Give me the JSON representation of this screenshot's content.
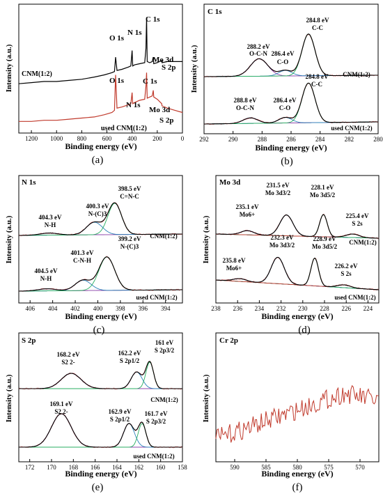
{
  "chart_data": [
    {
      "type": "line",
      "panel_label": "(a)",
      "xlabel": "Binding energy (eV)",
      "ylabel": "Intensity (a.u.)",
      "xlim": [
        1300,
        0
      ],
      "xticks": [
        "1200",
        "1000",
        "800",
        "600",
        "400",
        "200",
        "0"
      ],
      "series": [
        {
          "name": "CNM(1:2)",
          "color": "#000000",
          "x": [
            1300,
            1200,
            1100,
            1000,
            900,
            800,
            700,
            620,
            560,
            540,
            531,
            520,
            480,
            430,
            410,
            400,
            395,
            380,
            340,
            300,
            290,
            285,
            280,
            260,
            240,
            232,
            228,
            200,
            165,
            162,
            120,
            60,
            0
          ],
          "y": [
            42,
            43,
            44,
            44,
            45,
            46,
            48,
            50,
            52,
            53,
            66,
            54,
            55,
            57,
            58,
            72,
            58,
            59,
            60,
            61,
            74,
            102,
            62,
            61,
            62,
            66,
            60,
            61,
            63,
            61,
            62,
            62,
            62
          ]
        },
        {
          "name": "used CNM(1:2)",
          "color": "#c0392b",
          "x": [
            1300,
            1200,
            1100,
            1000,
            900,
            800,
            700,
            620,
            560,
            540,
            531,
            520,
            480,
            430,
            410,
            400,
            395,
            380,
            340,
            300,
            290,
            285,
            280,
            260,
            240,
            232,
            228,
            200,
            165,
            162,
            120,
            60,
            0
          ],
          "y": [
            8,
            8,
            9,
            9,
            10,
            11,
            12,
            14,
            16,
            18,
            50,
            20,
            21,
            23,
            24,
            34,
            24,
            25,
            27,
            28,
            40,
            52,
            29,
            30,
            31,
            36,
            30,
            28,
            24,
            22,
            20,
            18,
            16
          ]
        }
      ],
      "annotations": [
        "O 1s",
        "N 1s",
        "C 1s",
        "Mo 3d",
        "S 2p",
        "O 1s",
        "N 1s",
        "C 1s",
        "Mo 3d",
        "S 2p",
        "CNM(1:2)",
        "used CNM(1:2)"
      ]
    },
    {
      "type": "line",
      "panel_label": "(b)",
      "title": "C 1s",
      "xlabel": "Binding energy (eV)",
      "ylabel": "Intensity (a.u.)",
      "xlim": [
        292,
        280
      ],
      "xticks": [
        "292",
        "290",
        "288",
        "286",
        "284",
        "282",
        "280"
      ],
      "peaks": {
        "top": [
          {
            "center": 288.2,
            "label": "288.2 eV",
            "sub": "O-C-N"
          },
          {
            "center": 286.4,
            "label": "286.4 eV",
            "sub": "C-O"
          },
          {
            "center": 284.8,
            "label": "284.8 eV",
            "sub": "C-C"
          }
        ],
        "bottom": [
          {
            "center": 288.8,
            "label": "288.8 eV",
            "sub": "O-C-N"
          },
          {
            "center": 286.4,
            "label": "286.4 eV",
            "sub": "C-O"
          },
          {
            "center": 284.8,
            "label": "284.8 eV",
            "sub": "C-C"
          }
        ]
      },
      "annotations": [
        "CNM(1:2)",
        "used CNM(1:2)"
      ]
    },
    {
      "type": "line",
      "panel_label": "(c)",
      "title": "N 1s",
      "xlabel": "Binding energy (eV)",
      "ylabel": "Intensity (a.u.)",
      "xlim": [
        407,
        392.5
      ],
      "xticks": [
        "406",
        "404",
        "402",
        "400",
        "398",
        "396",
        "394"
      ],
      "peaks": {
        "top": [
          {
            "center": 404.3,
            "label": "404.3 eV",
            "sub": "N-H"
          },
          {
            "center": 400.3,
            "label": "400.3 eV",
            "sub": "N-(C)3"
          },
          {
            "center": 398.5,
            "label": "398.5 eV",
            "sub": "C=N-C"
          }
        ],
        "bottom": [
          {
            "center": 404.5,
            "label": "404.5 eV",
            "sub": "N-H"
          },
          {
            "center": 401.3,
            "label": "401.3 eV",
            "sub": "C-N-H"
          },
          {
            "center": 399.2,
            "label": "399.2 eV",
            "sub": "N-(C)3"
          }
        ]
      },
      "annotations": [
        "CNM(1:2)",
        "used CNM(1:2)"
      ]
    },
    {
      "type": "line",
      "panel_label": "(d)",
      "title": "Mo 3d",
      "xlabel": "Binding energy (eV)",
      "ylabel": "Intensity (a.u.)",
      "xlim": [
        238,
        223
      ],
      "xticks": [
        "238",
        "236",
        "234",
        "232",
        "230",
        "228",
        "226",
        "224"
      ],
      "peaks": {
        "top": [
          {
            "center": 235.1,
            "label": "235.1 eV",
            "sub": "Mo6+"
          },
          {
            "center": 231.5,
            "label": "231.5 eV",
            "sub": "Mo 3d3/2"
          },
          {
            "center": 228.1,
            "label": "228.1 eV",
            "sub": "Mo 3d5/2"
          },
          {
            "center": 225.4,
            "label": "225.4 eV",
            "sub": "S 2s"
          }
        ],
        "bottom": [
          {
            "center": 235.8,
            "label": "235.8 eV",
            "sub": "Mo6+"
          },
          {
            "center": 232.3,
            "label": "232.3 eV",
            "sub": "Mo 3d3/2"
          },
          {
            "center": 228.9,
            "label": "228.9 eV",
            "sub": "Mo 3d5/2"
          },
          {
            "center": 226.2,
            "label": "226.2 eV",
            "sub": "S 2s"
          }
        ]
      },
      "annotations": [
        "CNM(1:2)",
        "used CNM(1:2)"
      ]
    },
    {
      "type": "line",
      "panel_label": "(e)",
      "title": "S 2p",
      "xlabel": "Binding energy (eV)",
      "ylabel": "Intensity (a.u.)",
      "xlim": [
        173,
        158
      ],
      "xticks": [
        "172",
        "170",
        "168",
        "166",
        "164",
        "162",
        "160",
        "158"
      ],
      "peaks": {
        "top": [
          {
            "center": 168.2,
            "label": "168.2 eV",
            "sub": "S2 2-"
          },
          {
            "center": 162.2,
            "label": "162.2 eV",
            "sub": "S 2p1/2"
          },
          {
            "center": 161.0,
            "label": "161 eV",
            "sub": "S 2p3/2"
          }
        ],
        "bottom": [
          {
            "center": 169.1,
            "label": "169.1 eV",
            "sub": "S2 2-"
          },
          {
            "center": 162.9,
            "label": "162.9 eV",
            "sub": "S 2p1/2"
          },
          {
            "center": 161.7,
            "label": "161.7 eV",
            "sub": "S 2p3/2"
          }
        ]
      },
      "annotations": [
        "CNM(1:2)",
        "used CNM(1:2)"
      ]
    },
    {
      "type": "line",
      "panel_label": "(f)",
      "title": "Cr 2p",
      "xlabel": "Binding energy (eV)",
      "ylabel": "Intensity (a.u.)",
      "xlim": [
        593,
        567
      ],
      "xticks": [
        "590",
        "585",
        "580",
        "575",
        "570"
      ]
    }
  ]
}
